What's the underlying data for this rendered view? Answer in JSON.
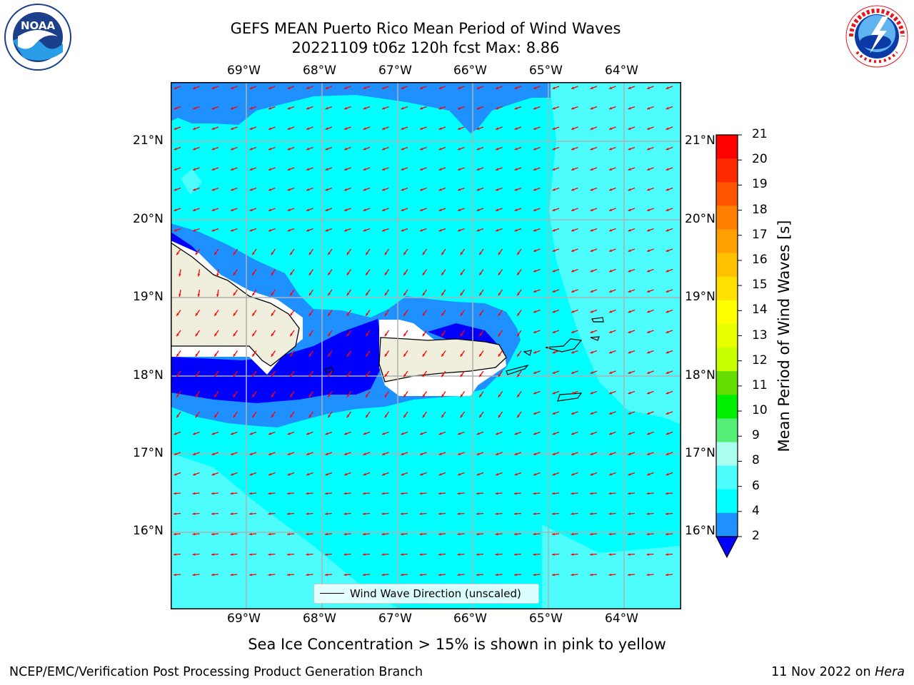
{
  "header": {
    "title_line1": "GEFS MEAN Puerto Rico Mean Period of Wind Waves",
    "title_line2": "20221109 t06z 120h fcst   Max: 8.86"
  },
  "logos": {
    "left": {
      "name": "noaa-logo",
      "text": "NOAA"
    },
    "right": {
      "name": "nws-logo",
      "text": "NATIONAL WEATHER SERVICE"
    }
  },
  "map": {
    "lon_ticks": [
      "69°W",
      "68°W",
      "67°W",
      "66°W",
      "65°W",
      "64°W"
    ],
    "lat_ticks": [
      "21°N",
      "20°N",
      "19°N",
      "18°N",
      "17°N",
      "16°N"
    ],
    "lon_range": [
      -70.0,
      -63.25
    ],
    "lat_range": [
      15.0,
      21.75
    ],
    "grid": true,
    "colors": {
      "land": "#f0eedc",
      "ocean_cyan": "#00ffff",
      "light_cyan": "#4dfcfc",
      "blue": "#1e90ff",
      "dark_blue": "#0000ff",
      "arrow": "#ff0000"
    },
    "legend_label": "Wind Wave Direction (unscaled)"
  },
  "colorbar": {
    "label": "Mean Period of Wind Waves [s]",
    "ticks": [
      "21",
      "20",
      "19",
      "18",
      "17",
      "16",
      "15",
      "14",
      "13",
      "12",
      "11",
      "10",
      "9",
      "8",
      "6",
      "4",
      "2"
    ],
    "colors": [
      "#ff0000",
      "#ff2a00",
      "#ff5500",
      "#ff8000",
      "#ffa000",
      "#ffc000",
      "#ffe000",
      "#ffff00",
      "#e8ff00",
      "#c8ff00",
      "#66dd00",
      "#00ee00",
      "#55ee77",
      "#aaffee",
      "#4dfcfc",
      "#00ffff",
      "#1e90ff"
    ],
    "under_color": "#0000ff"
  },
  "caption": "Sea Ice Concentration > 15% is shown in pink to yellow",
  "footer": {
    "left": "NCEP/EMC/Verification Post Processing Product Generation Branch",
    "right_date": "11 Nov 2022 on ",
    "right_host": "Hera"
  }
}
